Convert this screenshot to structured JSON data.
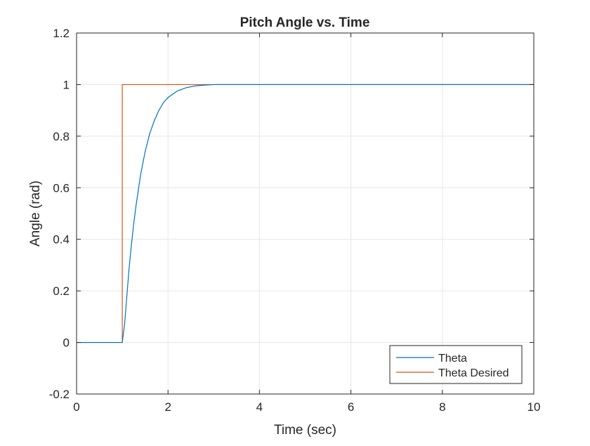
{
  "chart_data": {
    "type": "line",
    "title": "Pitch Angle vs. Time",
    "xlabel": "Time (sec)",
    "ylabel": "Angle (rad)",
    "xlim": [
      0,
      10
    ],
    "ylim": [
      -0.2,
      1.2
    ],
    "xticks": [
      0,
      2,
      4,
      6,
      8,
      10
    ],
    "yticks": [
      -0.2,
      0,
      0.2,
      0.4,
      0.6,
      0.8,
      1,
      1.2
    ],
    "xtick_labels": [
      "0",
      "2",
      "4",
      "6",
      "8",
      "10"
    ],
    "ytick_labels": [
      "-0.2",
      "0",
      "0.2",
      "0.4",
      "0.6",
      "0.8",
      "1",
      "1.2"
    ],
    "grid": true,
    "legend_position": "bottom-right",
    "series": [
      {
        "name": "Theta",
        "color": "#0072BD",
        "x": [
          0,
          1,
          1.05,
          1.1,
          1.15,
          1.2,
          1.25,
          1.3,
          1.4,
          1.5,
          1.6,
          1.7,
          1.8,
          1.9,
          2.0,
          2.2,
          2.4,
          2.6,
          2.8,
          3.0,
          10
        ],
        "y": [
          0,
          0,
          0.07,
          0.18,
          0.29,
          0.38,
          0.46,
          0.53,
          0.65,
          0.74,
          0.81,
          0.86,
          0.9,
          0.93,
          0.95,
          0.975,
          0.988,
          0.995,
          0.998,
          1.0,
          1.0
        ]
      },
      {
        "name": "Theta Desired",
        "color": "#D95319",
        "x": [
          0,
          1,
          1,
          10
        ],
        "y": [
          0,
          0,
          1,
          1
        ]
      }
    ]
  }
}
